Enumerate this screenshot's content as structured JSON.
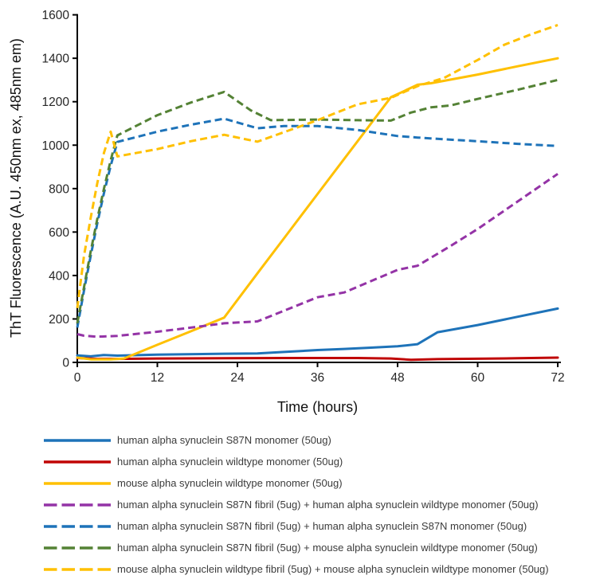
{
  "chart_data": {
    "type": "line",
    "title": "",
    "xlabel": "Time (hours)",
    "ylabel": "ThT Fluorescence (A.U. 450nm ex, 485nm em)",
    "xlim": [
      0,
      72
    ],
    "ylim": [
      0,
      1600
    ],
    "x_ticks": [
      0,
      12,
      24,
      36,
      48,
      60,
      72
    ],
    "y_ticks": [
      0,
      200,
      400,
      600,
      800,
      1000,
      1200,
      1400,
      1600
    ],
    "grid": false,
    "legend_position": "bottom",
    "axis_color": "#000000",
    "series": [
      {
        "name": "human alpha synuclein S87N monomer (50ug)",
        "color": "#1E73B9",
        "dash": "solid",
        "points": [
          [
            0,
            32
          ],
          [
            2,
            28
          ],
          [
            4,
            34
          ],
          [
            6,
            31
          ],
          [
            12,
            36
          ],
          [
            22,
            40
          ],
          [
            27,
            41
          ],
          [
            31,
            48
          ],
          [
            36,
            57
          ],
          [
            40,
            62
          ],
          [
            44,
            68
          ],
          [
            48,
            74
          ],
          [
            51,
            84
          ],
          [
            54,
            139
          ],
          [
            60,
            172
          ],
          [
            66,
            210
          ],
          [
            72,
            248
          ]
        ]
      },
      {
        "name": "human alpha synuclein wildtype monomer (50ug)",
        "color": "#C00505",
        "dash": "solid",
        "points": [
          [
            0,
            20
          ],
          [
            3,
            16
          ],
          [
            6,
            16
          ],
          [
            12,
            18
          ],
          [
            22,
            19
          ],
          [
            31,
            20
          ],
          [
            36,
            20
          ],
          [
            42,
            20
          ],
          [
            47,
            18
          ],
          [
            50,
            12
          ],
          [
            54,
            15
          ],
          [
            60,
            17
          ],
          [
            66,
            19
          ],
          [
            72,
            22
          ]
        ]
      },
      {
        "name": "mouse alpha synuclein wildtype monomer (50ug)",
        "color": "#FFC000",
        "dash": "solid",
        "points": [
          [
            0,
            22
          ],
          [
            2,
            14
          ],
          [
            5,
            14
          ],
          [
            7,
            18
          ],
          [
            12,
            81
          ],
          [
            17,
            143
          ],
          [
            22,
            206
          ],
          [
            27,
            410
          ],
          [
            31,
            572
          ],
          [
            36,
            775
          ],
          [
            42,
            1018
          ],
          [
            47,
            1221
          ],
          [
            48.5,
            1242
          ],
          [
            51,
            1278
          ],
          [
            53,
            1285
          ],
          [
            60,
            1325
          ],
          [
            66,
            1363
          ],
          [
            72,
            1400
          ]
        ]
      },
      {
        "name": "human alpha synuclein S87N fibril (5ug) + human alpha synuclein wildtype monomer (50ug)",
        "color": "#9433A6",
        "dash": "dashed",
        "points": [
          [
            0,
            130
          ],
          [
            1,
            123
          ],
          [
            3,
            118
          ],
          [
            6,
            122
          ],
          [
            12,
            141
          ],
          [
            18,
            164
          ],
          [
            22,
            180
          ],
          [
            27,
            189
          ],
          [
            31,
            238
          ],
          [
            36,
            300
          ],
          [
            40,
            322
          ],
          [
            44,
            374
          ],
          [
            48,
            426
          ],
          [
            51,
            445
          ],
          [
            56,
            537
          ],
          [
            60,
            614
          ],
          [
            66,
            741
          ],
          [
            72,
            868
          ]
        ]
      },
      {
        "name": "human alpha synuclein S87N fibril (5ug) + human alpha synuclein S87N monomer (50ug)",
        "color": "#1E73B9",
        "dash": "dashed",
        "points": [
          [
            0,
            160
          ],
          [
            1,
            330
          ],
          [
            2,
            490
          ],
          [
            3,
            640
          ],
          [
            4,
            780
          ],
          [
            5,
            905
          ],
          [
            6,
            1015
          ],
          [
            12,
            1062
          ],
          [
            17,
            1094
          ],
          [
            22,
            1122
          ],
          [
            27,
            1078
          ],
          [
            31,
            1088
          ],
          [
            36,
            1088
          ],
          [
            42,
            1070
          ],
          [
            48,
            1042
          ],
          [
            51,
            1035
          ],
          [
            56,
            1025
          ],
          [
            60,
            1018
          ],
          [
            66,
            1006
          ],
          [
            72,
            996
          ]
        ]
      },
      {
        "name": "human alpha synuclein S87N fibril (5ug) + mouse alpha synuclein wildtype monomer (50ug)",
        "color": "#548235",
        "dash": "dashed",
        "points": [
          [
            0,
            180
          ],
          [
            1,
            345
          ],
          [
            2,
            510
          ],
          [
            3,
            660
          ],
          [
            4,
            800
          ],
          [
            5,
            930
          ],
          [
            6,
            1045
          ],
          [
            12,
            1138
          ],
          [
            17,
            1196
          ],
          [
            22,
            1245
          ],
          [
            26,
            1160
          ],
          [
            29,
            1115
          ],
          [
            36,
            1118
          ],
          [
            42,
            1115
          ],
          [
            47,
            1113
          ],
          [
            50,
            1150
          ],
          [
            53,
            1174
          ],
          [
            56,
            1183
          ],
          [
            60,
            1213
          ],
          [
            66,
            1255
          ],
          [
            72,
            1300
          ]
        ]
      },
      {
        "name": "mouse alpha synuclein wildtype fibril (5ug) + mouse alpha synuclein wildtype monomer (50ug)",
        "color": "#FFC000",
        "dash": "dashed",
        "points": [
          [
            0,
            250
          ],
          [
            1,
            490
          ],
          [
            2,
            665
          ],
          [
            3,
            825
          ],
          [
            4,
            965
          ],
          [
            5,
            1062
          ],
          [
            6,
            948
          ],
          [
            12,
            982
          ],
          [
            17,
            1018
          ],
          [
            22,
            1048
          ],
          [
            27,
            1016
          ],
          [
            31,
            1060
          ],
          [
            36,
            1115
          ],
          [
            42,
            1188
          ],
          [
            47,
            1218
          ],
          [
            51,
            1272
          ],
          [
            55,
            1310
          ],
          [
            60,
            1392
          ],
          [
            64,
            1462
          ],
          [
            68,
            1510
          ],
          [
            72,
            1553
          ]
        ]
      }
    ]
  }
}
